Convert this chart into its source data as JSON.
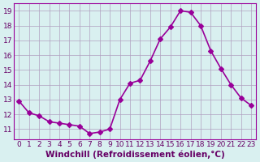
{
  "x": [
    0,
    1,
    2,
    3,
    4,
    5,
    6,
    7,
    8,
    9,
    10,
    11,
    12,
    13,
    14,
    15,
    16,
    17,
    18,
    19,
    20,
    21,
    22,
    23
  ],
  "y": [
    12.9,
    12.1,
    11.9,
    11.5,
    11.4,
    11.3,
    11.2,
    10.7,
    10.8,
    11.0,
    13.0,
    14.1,
    14.3,
    15.6,
    17.1,
    17.9,
    19.0,
    18.9,
    18.0,
    16.3,
    15.1,
    14.0,
    13.1,
    12.6
  ],
  "line_color": "#990099",
  "marker": "D",
  "markersize": 3,
  "linewidth": 1.2,
  "background_color": "#d9f0f0",
  "grid_color": "#b0a0c0",
  "xlabel": "Windchill (Refroidissement éolien,°C)",
  "xlabel_fontsize": 7.5,
  "tick_fontsize": 6.5,
  "xlim": [
    -0.5,
    23.5
  ],
  "ylim": [
    10.3,
    19.5
  ],
  "yticks": [
    11,
    12,
    13,
    14,
    15,
    16,
    17,
    18,
    19
  ],
  "xticks": [
    0,
    1,
    2,
    3,
    4,
    5,
    6,
    7,
    8,
    9,
    10,
    11,
    12,
    13,
    14,
    15,
    16,
    17,
    18,
    19,
    20,
    21,
    22,
    23
  ]
}
